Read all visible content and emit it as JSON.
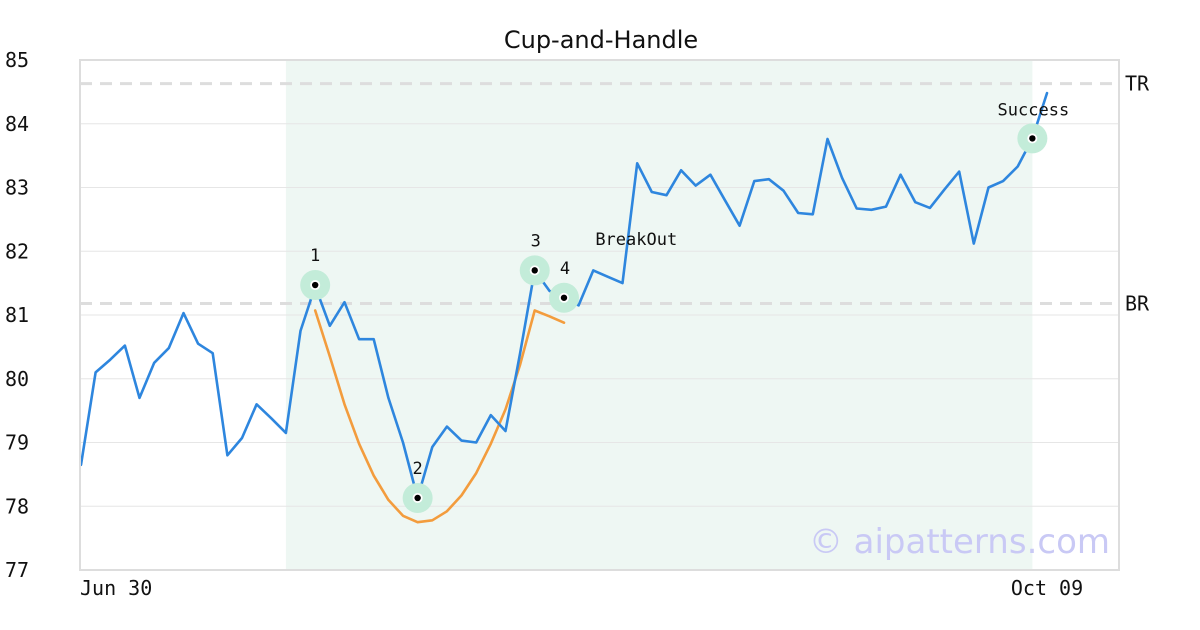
{
  "chart_data": {
    "type": "line",
    "title": "Cup-and-Handle",
    "watermark": "© aipatterns.com",
    "ylim": [
      77,
      85
    ],
    "yticks": [
      77,
      78,
      79,
      80,
      81,
      82,
      83,
      84,
      85
    ],
    "x_range": [
      0,
      66
    ],
    "xtick_labels": [
      {
        "x": 0,
        "label": "Jun 30"
      },
      {
        "x": 66,
        "label": "Oct 09"
      }
    ],
    "grid": true,
    "colors": {
      "price": "#2e86de",
      "cup": "#f39c3d",
      "highlight": "#eef7f3",
      "marker_halo": "#c3ecd9",
      "ref_line": "#dddddd",
      "watermark": "#c9c9f5"
    },
    "pattern_region": {
      "x_start": 14,
      "x_end": 65
    },
    "series": [
      {
        "role": "price",
        "x": [
          0,
          1,
          2,
          3,
          4,
          5,
          6,
          7,
          8,
          9,
          10,
          11,
          12,
          13,
          14,
          15,
          16,
          17,
          18,
          19,
          20,
          21,
          22,
          23,
          24,
          25,
          26,
          27,
          28,
          29,
          30,
          31,
          32,
          33,
          34,
          35,
          36,
          37,
          38,
          39,
          40,
          41,
          42,
          43,
          44,
          45,
          46,
          47,
          48,
          49,
          50,
          51,
          52,
          53,
          54,
          55,
          56,
          57,
          58,
          59,
          60,
          61,
          62,
          63,
          64,
          65,
          66
        ],
        "values": [
          78.65,
          80.1,
          80.3,
          80.52,
          79.7,
          80.25,
          80.48,
          81.03,
          80.55,
          80.4,
          78.8,
          79.07,
          79.6,
          79.38,
          79.15,
          80.75,
          81.45,
          80.83,
          81.2,
          80.62,
          80.62,
          79.7,
          79.0,
          78.13,
          78.93,
          79.25,
          79.03,
          79.0,
          79.43,
          79.18,
          80.4,
          81.7,
          81.38,
          81.27,
          81.15,
          81.7,
          81.6,
          81.5,
          83.38,
          82.93,
          82.88,
          83.27,
          83.03,
          83.2,
          82.8,
          82.4,
          83.1,
          83.13,
          82.95,
          82.6,
          82.58,
          83.76,
          83.15,
          82.67,
          82.65,
          82.7,
          83.2,
          82.77,
          82.68,
          82.97,
          83.25,
          82.12,
          83.0,
          83.1,
          83.33,
          83.77,
          84.48
        ]
      },
      {
        "role": "cup",
        "x": [
          16,
          17,
          18,
          19,
          20,
          21,
          22,
          23,
          24,
          25,
          26,
          27,
          28,
          29,
          30,
          31,
          32,
          33
        ],
        "values": [
          81.07,
          80.35,
          79.6,
          78.98,
          78.48,
          78.1,
          77.85,
          77.75,
          77.78,
          77.92,
          78.17,
          78.52,
          78.98,
          79.52,
          80.22,
          81.07,
          80.98,
          80.88
        ]
      }
    ],
    "reference_lines": [
      {
        "label": "TR",
        "value": 84.63
      },
      {
        "label": "BR",
        "value": 81.18
      }
    ],
    "annotations": [
      {
        "label": "1",
        "x": 16,
        "y": 81.47,
        "label_pos": "above"
      },
      {
        "label": "2",
        "x": 23,
        "y": 78.13,
        "label_pos": "above"
      },
      {
        "label": "3",
        "x": 31,
        "y": 81.7,
        "label_pos": "above"
      },
      {
        "label": "4",
        "x": 33,
        "y": 81.27,
        "label_pos": "above"
      },
      {
        "label": "BreakOut",
        "x": 35,
        "y": 81.72,
        "label_pos": "above"
      },
      {
        "label": "Success",
        "x": 65,
        "y": 83.77,
        "label_pos": "above"
      }
    ]
  }
}
